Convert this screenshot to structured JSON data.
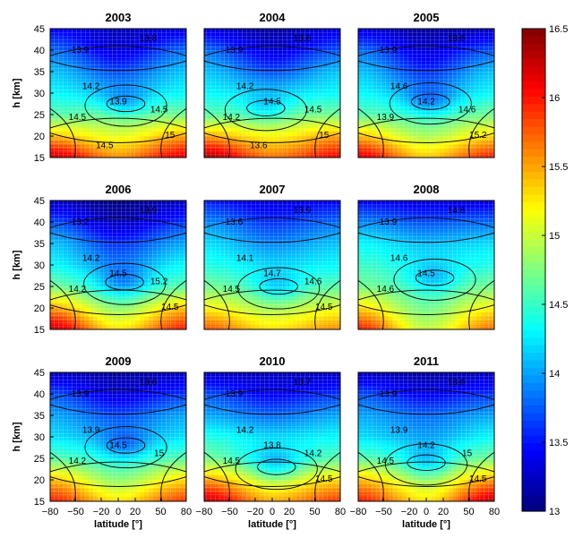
{
  "chart_data": {
    "type": "heatmap",
    "panels": [
      {
        "title": "2003",
        "contours": [
          "13.9",
          "13.8",
          "14.2",
          "13.9",
          "14.5",
          "14.5",
          "15",
          "14.5"
        ],
        "low_lat": [
          5,
          13
        ],
        "low_h": [
          27.5,
          27.5
        ],
        "profile": [
          [
            16.3,
            15.4,
            14.6,
            14.3,
            14.1,
            13.8,
            13.4
          ],
          [
            15.6,
            15.1,
            14.7,
            14.1,
            13.7,
            13.3,
            13.2
          ],
          [
            16.2,
            15.5,
            14.7,
            14.3,
            14.1,
            13.8,
            13.3
          ]
        ]
      },
      {
        "title": "2004",
        "contours": [
          "13.9",
          "13.6",
          "14.2",
          "14.5",
          "14.2",
          "14.5",
          "15",
          "13.6"
        ],
        "low_lat": [
          -25,
          10
        ],
        "low_h": [
          26,
          27
        ],
        "profile": [
          [
            16.4,
            15.5,
            14.6,
            14.3,
            14.1,
            13.8,
            13.3
          ],
          [
            15.7,
            15.2,
            14.7,
            14.2,
            13.7,
            13.3,
            13.1
          ],
          [
            16.1,
            15.5,
            14.7,
            14.3,
            14.1,
            13.7,
            13.3
          ]
        ]
      },
      {
        "title": "2005",
        "contours": [
          "13.9",
          "13.6",
          "14.6",
          "14.2",
          "13.9",
          "14.6",
          "15.2"
        ],
        "low_lat": [
          0,
          10
        ],
        "low_h": [
          28,
          28
        ],
        "profile": [
          [
            16.2,
            15.4,
            14.6,
            14.3,
            14.1,
            13.8,
            13.3
          ],
          [
            15.4,
            14.9,
            14.5,
            14.0,
            13.6,
            13.3,
            13.1
          ],
          [
            16.0,
            15.3,
            14.7,
            14.3,
            14.1,
            13.7,
            13.2
          ]
        ]
      },
      {
        "title": "2006",
        "contours": [
          "13.2",
          "13.9",
          "14.2",
          "14.5",
          "14.2",
          "15.2",
          "14.5"
        ],
        "low_lat": [
          5,
          10
        ],
        "low_h": [
          25,
          27
        ],
        "profile": [
          [
            16.3,
            15.5,
            14.7,
            14.3,
            14.1,
            13.7,
            13.2
          ],
          [
            15.3,
            14.8,
            14.3,
            13.9,
            13.6,
            13.2,
            13.0
          ],
          [
            16.0,
            15.4,
            14.6,
            14.3,
            14.0,
            13.6,
            13.2
          ]
        ]
      },
      {
        "title": "2007",
        "contours": [
          "13.6",
          "13.9",
          "14.1",
          "14.7",
          "14.5",
          "14.6",
          "14.5"
        ],
        "low_lat": [
          5,
          10
        ],
        "low_h": [
          25,
          25
        ],
        "profile": [
          [
            15.8,
            15.2,
            14.7,
            14.4,
            14.2,
            13.9,
            13.5
          ],
          [
            15.3,
            14.9,
            14.5,
            14.2,
            13.9,
            13.6,
            13.3
          ],
          [
            15.6,
            15.1,
            14.6,
            14.3,
            14.1,
            13.8,
            13.4
          ]
        ]
      },
      {
        "title": "2008",
        "contours": [
          "13.9",
          "14.8",
          "14.6",
          "14.5",
          "14.6"
        ],
        "low_lat": [
          10,
          10
        ],
        "low_h": [
          27,
          27
        ],
        "profile": [
          [
            16.0,
            15.3,
            14.7,
            14.5,
            14.3,
            13.9,
            13.4
          ],
          [
            15.0,
            14.7,
            14.5,
            14.3,
            14.1,
            13.7,
            13.3
          ],
          [
            15.7,
            15.2,
            14.7,
            14.4,
            14.2,
            13.8,
            13.3
          ]
        ]
      },
      {
        "title": "2009",
        "contours": [
          "13.9",
          "13.6",
          "13.9",
          "14.5",
          "14.2",
          "15"
        ],
        "low_lat": [
          5,
          13
        ],
        "low_h": [
          28,
          28
        ],
        "profile": [
          [
            16.0,
            15.4,
            14.6,
            14.2,
            14.0,
            13.7,
            13.2
          ],
          [
            15.3,
            14.8,
            14.4,
            14.0,
            13.7,
            13.3,
            13.1
          ],
          [
            15.9,
            15.3,
            14.6,
            14.2,
            14.0,
            13.6,
            13.2
          ]
        ]
      },
      {
        "title": "2010",
        "contours": [
          "13.9",
          "13.7",
          "14.2",
          "13.8",
          "14.5",
          "14.2",
          "14.5"
        ],
        "low_lat": [
          0,
          10
        ],
        "low_h": [
          22.5,
          23.5
        ],
        "profile": [
          [
            16.3,
            15.5,
            14.7,
            14.4,
            14.0,
            13.7,
            13.2
          ],
          [
            15.5,
            15.0,
            14.3,
            14.2,
            13.8,
            13.4,
            13.2
          ],
          [
            15.9,
            15.3,
            14.6,
            14.3,
            14.0,
            13.6,
            13.2
          ]
        ]
      },
      {
        "title": "2011",
        "contours": [
          "13.9",
          "13.6",
          "13.9",
          "14.2",
          "14.5",
          "15",
          "14.5"
        ],
        "low_lat": [
          -10,
          10
        ],
        "low_h": [
          24,
          24
        ],
        "profile": [
          [
            16.0,
            15.4,
            14.6,
            14.2,
            14.0,
            13.7,
            13.2
          ],
          [
            15.3,
            14.9,
            14.4,
            14.0,
            13.8,
            13.4,
            13.1
          ],
          [
            16.3,
            15.5,
            14.7,
            14.3,
            14.0,
            13.6,
            13.2
          ]
        ]
      }
    ],
    "profile_heights": [
      15,
      20,
      25,
      30,
      35,
      40,
      45
    ],
    "profile_lats": [
      -80,
      0,
      80
    ],
    "ylabel": "h [km]",
    "xlabel": "latitude [°]",
    "x_ticks": [
      "−80",
      "−50",
      "−20",
      "0",
      "20",
      "50",
      "80"
    ],
    "x_tick_values": [
      -80,
      -50,
      -20,
      0,
      20,
      50,
      80
    ],
    "y_ticks": [
      "15",
      "20",
      "25",
      "30",
      "35",
      "40",
      "45"
    ],
    "y_tick_values": [
      15,
      20,
      25,
      30,
      35,
      40,
      45
    ],
    "xlim": [
      -80,
      80
    ],
    "ylim": [
      15,
      45
    ],
    "colorbar": {
      "ticks": [
        "13",
        "13.5",
        "14",
        "14.5",
        "15",
        "15.5",
        "16",
        "16.5"
      ],
      "tick_values": [
        13,
        13.5,
        14,
        14.5,
        15,
        15.5,
        16,
        16.5
      ],
      "range": [
        13,
        16.5
      ],
      "colormap": "jet"
    }
  }
}
